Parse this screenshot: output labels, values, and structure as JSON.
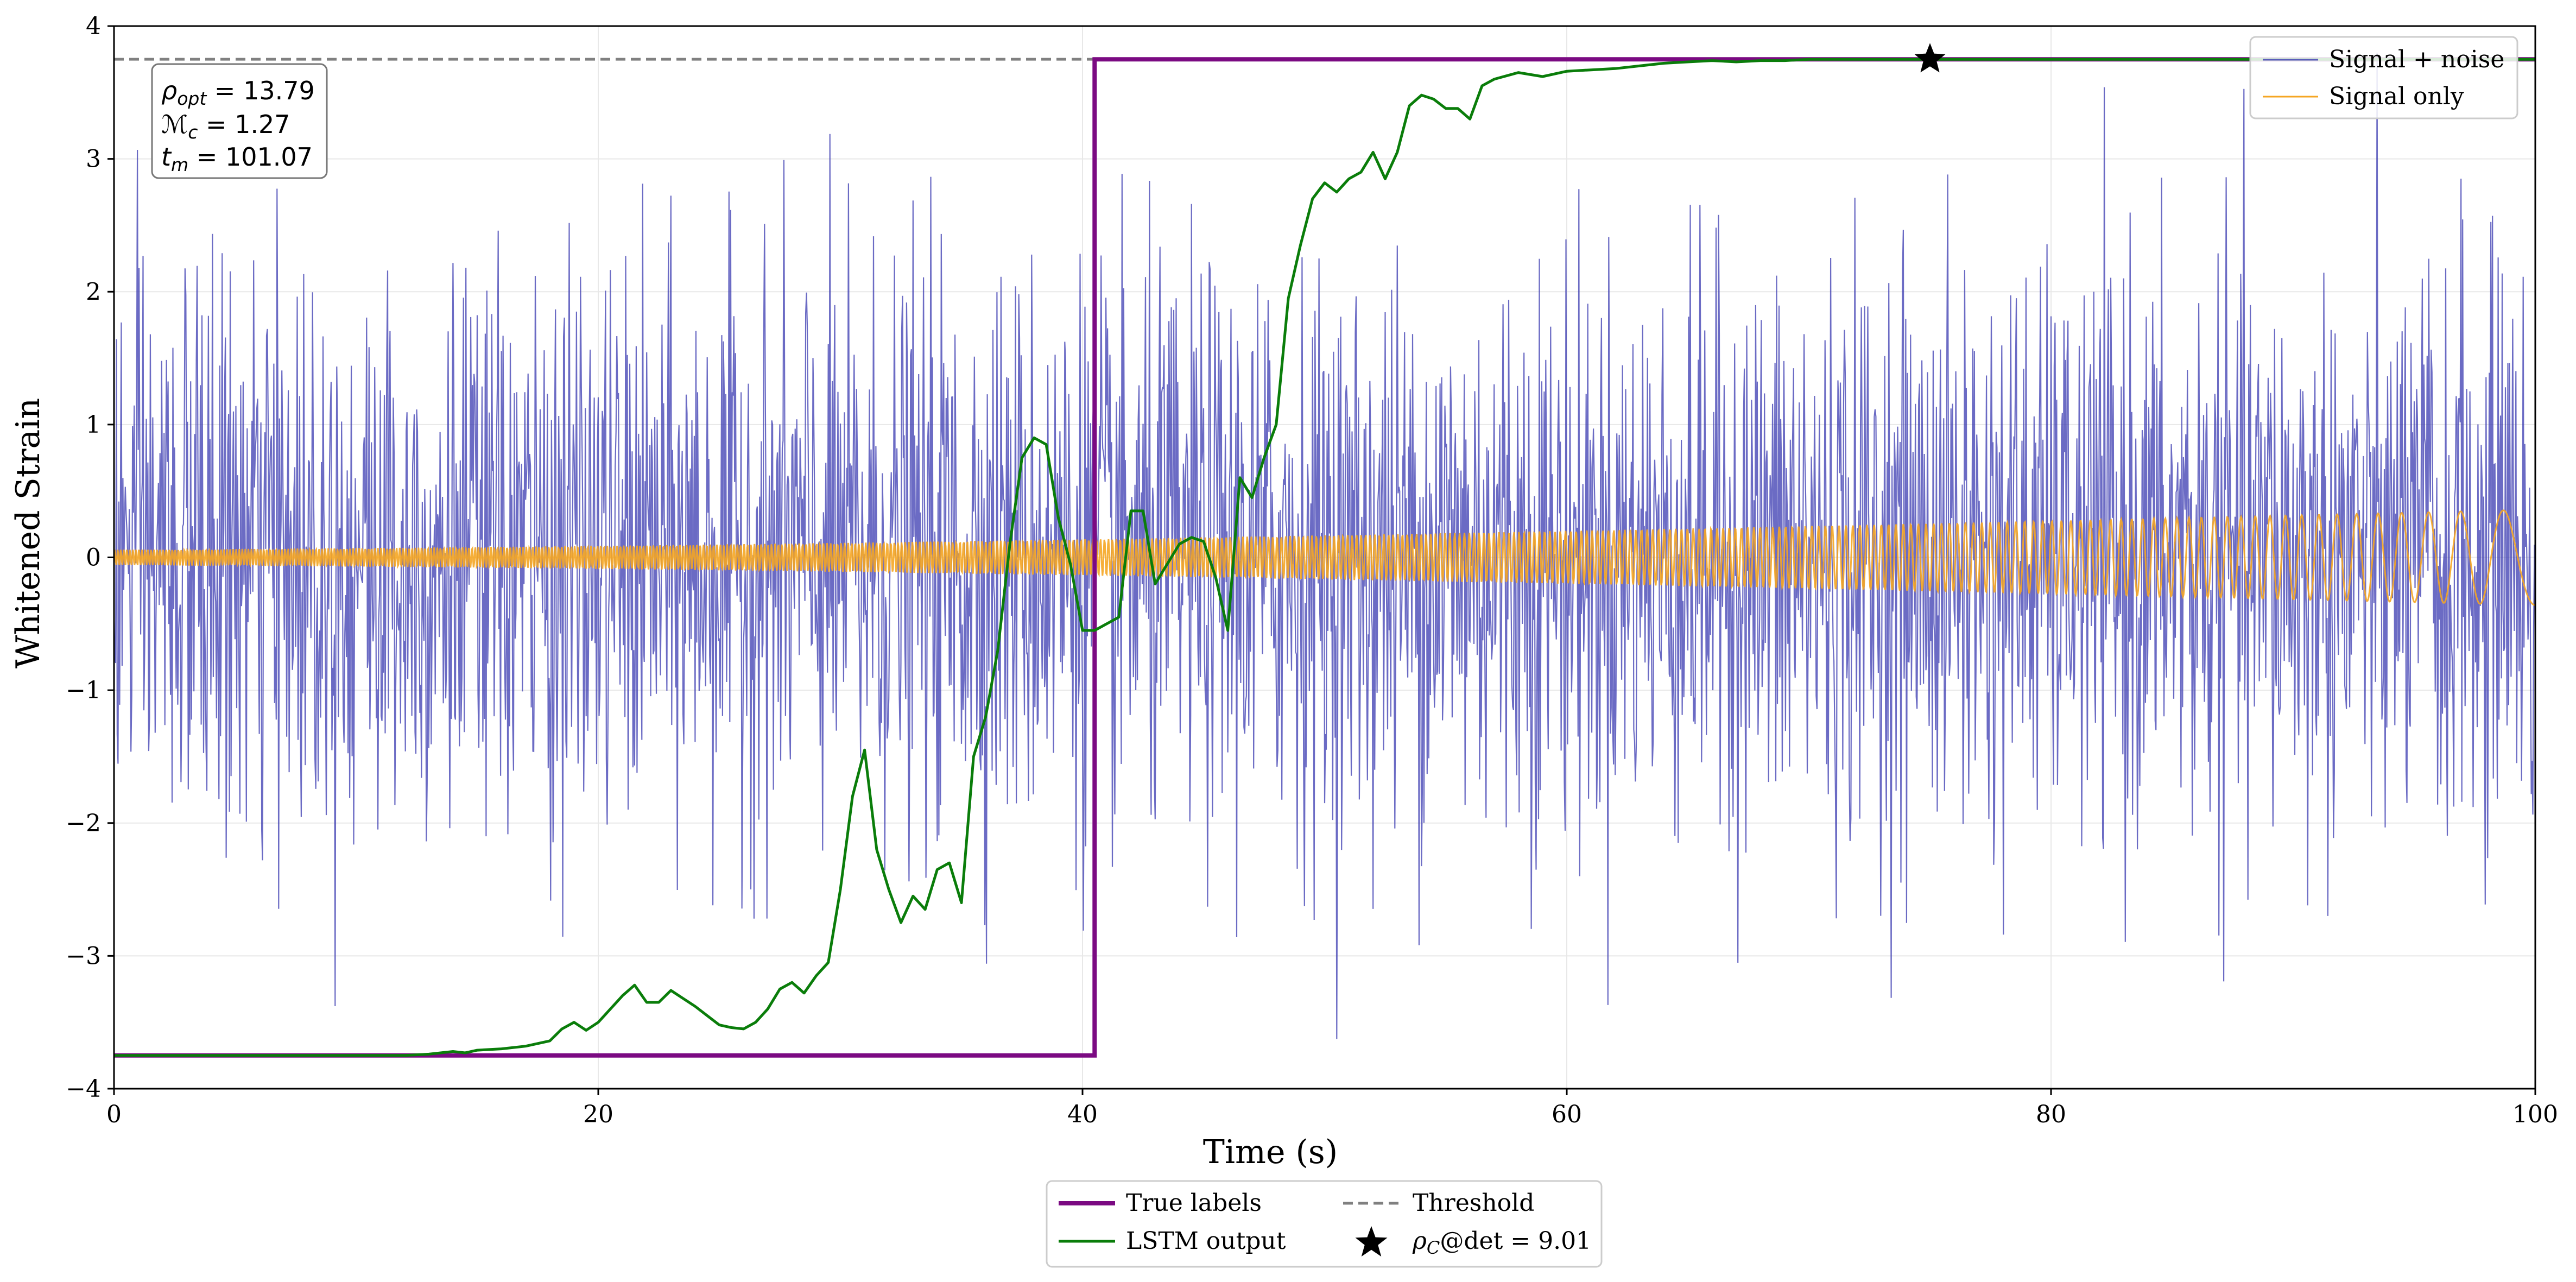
{
  "chart_data": {
    "type": "line",
    "title": "",
    "xlabel": "Time (s)",
    "ylabel": "Whitened Strain",
    "xlim": [
      0,
      100
    ],
    "ylim": [
      -4,
      4
    ],
    "x_ticks": [
      0,
      20,
      40,
      60,
      80,
      100
    ],
    "y_ticks": [
      -4,
      -3,
      -2,
      -1,
      0,
      1,
      2,
      3,
      4
    ],
    "grid": true,
    "series": [
      {
        "name": "Signal + noise",
        "color": "#3a3ab0",
        "description_values": {
          "kind": "noisy",
          "x_range": [
            0,
            100
          ],
          "amplitude_std": 1.05,
          "approx_min": -4.0,
          "approx_max": 3.8
        }
      },
      {
        "name": "Signal only",
        "color": "#f5a623",
        "description_values": {
          "kind": "chirp",
          "x_range": [
            0,
            100
          ],
          "amplitude_start": 0.06,
          "amplitude_end": 0.36,
          "frequency_start_hz": 8.0,
          "frequency_end_hz": 0.3
        }
      },
      {
        "name": "True labels",
        "color": "#7b0a82",
        "x": [
          0,
          40.5,
          40.5,
          100
        ],
        "y": [
          -3.75,
          -3.75,
          3.75,
          3.75
        ]
      },
      {
        "name": "LSTM output",
        "color": "#0a7d0a",
        "x": [
          0,
          12,
          13,
          14,
          14.5,
          15,
          16,
          17,
          18,
          18.5,
          19,
          19.5,
          20,
          21,
          21.5,
          22,
          22.5,
          23,
          23.5,
          24,
          24.5,
          25,
          25.5,
          26,
          26.5,
          27,
          27.5,
          28,
          28.5,
          29,
          29.5,
          30,
          30.5,
          31,
          31.5,
          32,
          32.5,
          33,
          33.5,
          34,
          34.5,
          35,
          35.5,
          36,
          36.5,
          37,
          37.5,
          38,
          38.5,
          39,
          39.5,
          40,
          40.5,
          41,
          41.5,
          42,
          42.5,
          43,
          43.5,
          44,
          44.5,
          45,
          45.5,
          46,
          46.5,
          47,
          47.5,
          48,
          48.5,
          49,
          49.5,
          50,
          50.5,
          51,
          51.5,
          52,
          52.5,
          53,
          53.5,
          54,
          54.5,
          55,
          55.5,
          56,
          56.5,
          57,
          58,
          59,
          60,
          61,
          62,
          63,
          64,
          65,
          66,
          67,
          68,
          69,
          70,
          71,
          72,
          73,
          74,
          75,
          100
        ],
        "y": [
          -3.75,
          -3.75,
          -3.74,
          -3.72,
          -3.73,
          -3.71,
          -3.7,
          -3.68,
          -3.64,
          -3.55,
          -3.5,
          -3.56,
          -3.5,
          -3.3,
          -3.22,
          -3.35,
          -3.35,
          -3.26,
          -3.32,
          -3.38,
          -3.45,
          -3.52,
          -3.54,
          -3.55,
          -3.5,
          -3.4,
          -3.25,
          -3.2,
          -3.28,
          -3.15,
          -3.05,
          -2.5,
          -1.8,
          -1.45,
          -2.2,
          -2.5,
          -2.75,
          -2.55,
          -2.65,
          -2.35,
          -2.3,
          -2.6,
          -1.5,
          -1.2,
          -0.7,
          0.1,
          0.75,
          0.9,
          0.85,
          0.3,
          -0.05,
          -0.55,
          -0.55,
          -0.5,
          -0.45,
          0.35,
          0.35,
          -0.2,
          -0.05,
          0.1,
          0.15,
          0.12,
          -0.15,
          -0.55,
          0.6,
          0.45,
          0.75,
          1.0,
          1.95,
          2.35,
          2.7,
          2.82,
          2.75,
          2.85,
          2.9,
          3.05,
          2.85,
          3.05,
          3.4,
          3.48,
          3.45,
          3.38,
          3.38,
          3.3,
          3.55,
          3.6,
          3.65,
          3.62,
          3.66,
          3.67,
          3.68,
          3.7,
          3.72,
          3.73,
          3.74,
          3.73,
          3.74,
          3.74,
          3.75,
          3.75,
          3.75,
          3.75,
          3.75,
          3.75,
          3.75
        ]
      },
      {
        "name": "Threshold",
        "color": "#808080",
        "x": [
          0,
          100
        ],
        "y": [
          3.75,
          3.75
        ]
      }
    ],
    "markers": [
      {
        "name": "detection",
        "x": 75,
        "y": 3.75
      }
    ],
    "annotation": {
      "rho_opt_label": "ρ",
      "rho_opt_sub": "opt",
      "rho_opt_value": " = 13.79",
      "mc_label": "ℳ",
      "mc_sub": "c",
      "mc_value": " = 1.27",
      "tm_label": "t",
      "tm_sub": "m",
      "tm_value": " = 101.07"
    },
    "legend_top_right": [
      "Signal + noise",
      "Signal only"
    ],
    "legend_bottom": {
      "true_labels": "True labels",
      "lstm_output": "LSTM output",
      "threshold": "Threshold",
      "marker_prefix": "ρ",
      "marker_sub": "C",
      "marker_suffix": "@det = 9.01"
    }
  }
}
